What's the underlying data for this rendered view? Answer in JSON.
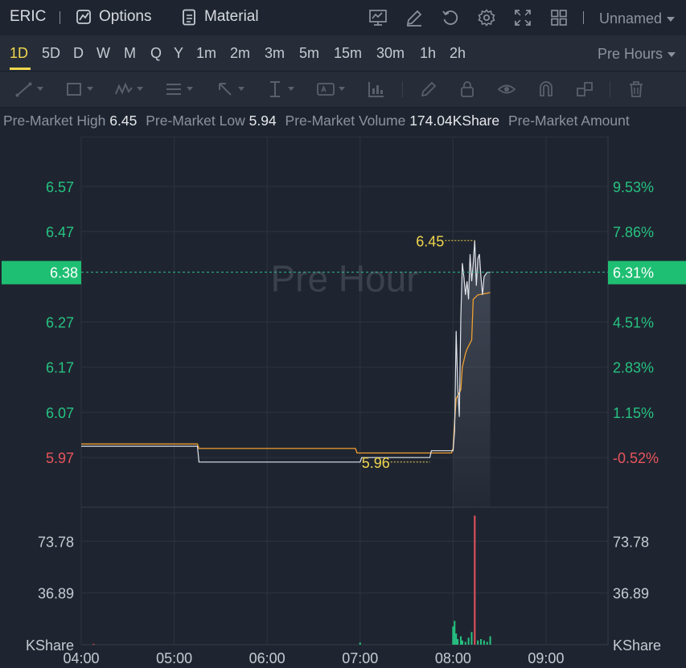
{
  "header": {
    "symbol": "ERIC",
    "options_label": "Options",
    "material_label": "Material",
    "layout_name": "Unnamed",
    "icons": [
      "chart-icon",
      "edit-icon",
      "refresh-icon",
      "settings-icon",
      "fullscreen-icon",
      "layout-grid-icon"
    ]
  },
  "timeframes": {
    "items": [
      "1D",
      "5D",
      "D",
      "W",
      "M",
      "Q",
      "Y",
      "1m",
      "2m",
      "3m",
      "5m",
      "15m",
      "30m",
      "1h",
      "2h"
    ],
    "active": "1D",
    "session": "Pre Hours"
  },
  "tools": [
    "line-tool-icon",
    "rectangle-tool-icon",
    "pattern-tool-icon",
    "fib-tool-icon",
    "arrow-tool-icon",
    "measure-tool-icon",
    "text-tool-icon",
    "indicator-tool-icon",
    "pen-tool-icon",
    "lock-icon",
    "eye-icon",
    "magnet-icon",
    "clone-icon",
    "trash-icon"
  ],
  "stats": {
    "high_label": "Pre-Market High",
    "high_value": "6.45",
    "low_label": "Pre-Market Low",
    "low_value": "5.94",
    "volume_label": "Pre-Market Volume",
    "volume_value": "174.04KShare",
    "amount_label": "Pre-Market Amount"
  },
  "colors": {
    "up": "#26c281",
    "down": "#e8545c",
    "accent": "#f0d64e",
    "price_line": "#e0e3ea",
    "avg_line": "#f0a030",
    "badge": "#1fbf73"
  },
  "chart_data": {
    "type": "line",
    "watermark": "Pre Hour",
    "x_ticks": [
      "04:00",
      "05:00",
      "06:00",
      "07:00",
      "08:00",
      "09:00"
    ],
    "x_range": [
      "04:00",
      "09:40"
    ],
    "y_ticks": [
      "6.57",
      "6.47",
      "6.27",
      "6.17",
      "6.07",
      "5.97"
    ],
    "y_tick_colors": [
      "up",
      "up",
      "up",
      "up",
      "up",
      "down"
    ],
    "pct_ticks": [
      "9.53%",
      "7.86%",
      "4.51%",
      "2.83%",
      "1.15%",
      "-0.52%"
    ],
    "y_range": [
      5.86,
      6.68
    ],
    "prev_close": 6.0,
    "current": {
      "price": "6.38",
      "pct": "6.31%"
    },
    "high_marker": {
      "label": "6.45",
      "time": "08:14",
      "value": 6.45
    },
    "low_marker": {
      "label": "5.96",
      "time": "07:00",
      "value": 5.96
    },
    "series": [
      {
        "name": "Price",
        "color_key": "price_line",
        "points": [
          [
            "04:00",
            5.995
          ],
          [
            "05:15",
            5.995
          ],
          [
            "05:16",
            5.96
          ],
          [
            "07:00",
            5.96
          ],
          [
            "07:01",
            5.97
          ],
          [
            "07:45",
            5.97
          ],
          [
            "07:46",
            5.985
          ],
          [
            "08:00",
            5.985
          ],
          [
            "08:01",
            6.03
          ],
          [
            "08:02",
            6.25
          ],
          [
            "08:03",
            6.13
          ],
          [
            "08:04",
            6.06
          ],
          [
            "08:05",
            6.28
          ],
          [
            "08:06",
            6.4
          ],
          [
            "08:07",
            6.37
          ],
          [
            "08:08",
            6.33
          ],
          [
            "08:09",
            6.36
          ],
          [
            "08:10",
            6.32
          ],
          [
            "08:11",
            6.42
          ],
          [
            "08:12",
            6.36
          ],
          [
            "08:13",
            6.4
          ],
          [
            "08:14",
            6.45
          ],
          [
            "08:15",
            6.35
          ],
          [
            "08:16",
            6.41
          ],
          [
            "08:17",
            6.42
          ],
          [
            "08:18",
            6.37
          ],
          [
            "08:19",
            6.33
          ],
          [
            "08:20",
            6.37
          ],
          [
            "08:22",
            6.38
          ],
          [
            "08:24",
            6.38
          ]
        ]
      },
      {
        "name": "Avg",
        "color_key": "avg_line",
        "points": [
          [
            "04:00",
            6.0
          ],
          [
            "05:15",
            6.0
          ],
          [
            "05:16",
            5.99
          ],
          [
            "06:57",
            5.99
          ],
          [
            "06:58",
            5.98
          ],
          [
            "07:59",
            5.98
          ],
          [
            "08:00",
            5.99
          ],
          [
            "08:01",
            6.05
          ],
          [
            "08:02",
            6.1
          ],
          [
            "08:05",
            6.12
          ],
          [
            "08:06",
            6.17
          ],
          [
            "08:08",
            6.2
          ],
          [
            "08:09",
            6.21
          ],
          [
            "08:12",
            6.23
          ],
          [
            "08:13",
            6.32
          ],
          [
            "08:16",
            6.33
          ],
          [
            "08:24",
            6.335
          ]
        ]
      }
    ],
    "volume": {
      "unit": "KShare",
      "ticks": [
        "73.78",
        "36.89"
      ],
      "y_range": [
        0,
        98
      ],
      "bars": [
        {
          "time": "04:08",
          "value": 0.6,
          "dir": "down"
        },
        {
          "time": "07:00",
          "value": 1.5,
          "dir": "up"
        },
        {
          "time": "08:00",
          "value": 13,
          "dir": "up"
        },
        {
          "time": "08:01",
          "value": 17,
          "dir": "up"
        },
        {
          "time": "08:02",
          "value": 8,
          "dir": "up"
        },
        {
          "time": "08:03",
          "value": 4,
          "dir": "up"
        },
        {
          "time": "08:05",
          "value": 6,
          "dir": "up"
        },
        {
          "time": "08:06",
          "value": 3,
          "dir": "up"
        },
        {
          "time": "08:08",
          "value": 2,
          "dir": "up"
        },
        {
          "time": "08:10",
          "value": 5,
          "dir": "up"
        },
        {
          "time": "08:12",
          "value": 9,
          "dir": "up"
        },
        {
          "time": "08:14",
          "value": 92,
          "dir": "down"
        },
        {
          "time": "08:16",
          "value": 3,
          "dir": "up"
        },
        {
          "time": "08:18",
          "value": 4,
          "dir": "up"
        },
        {
          "time": "08:20",
          "value": 3,
          "dir": "up"
        },
        {
          "time": "08:22",
          "value": 2,
          "dir": "up"
        },
        {
          "time": "08:24",
          "value": 6,
          "dir": "up"
        }
      ]
    }
  }
}
